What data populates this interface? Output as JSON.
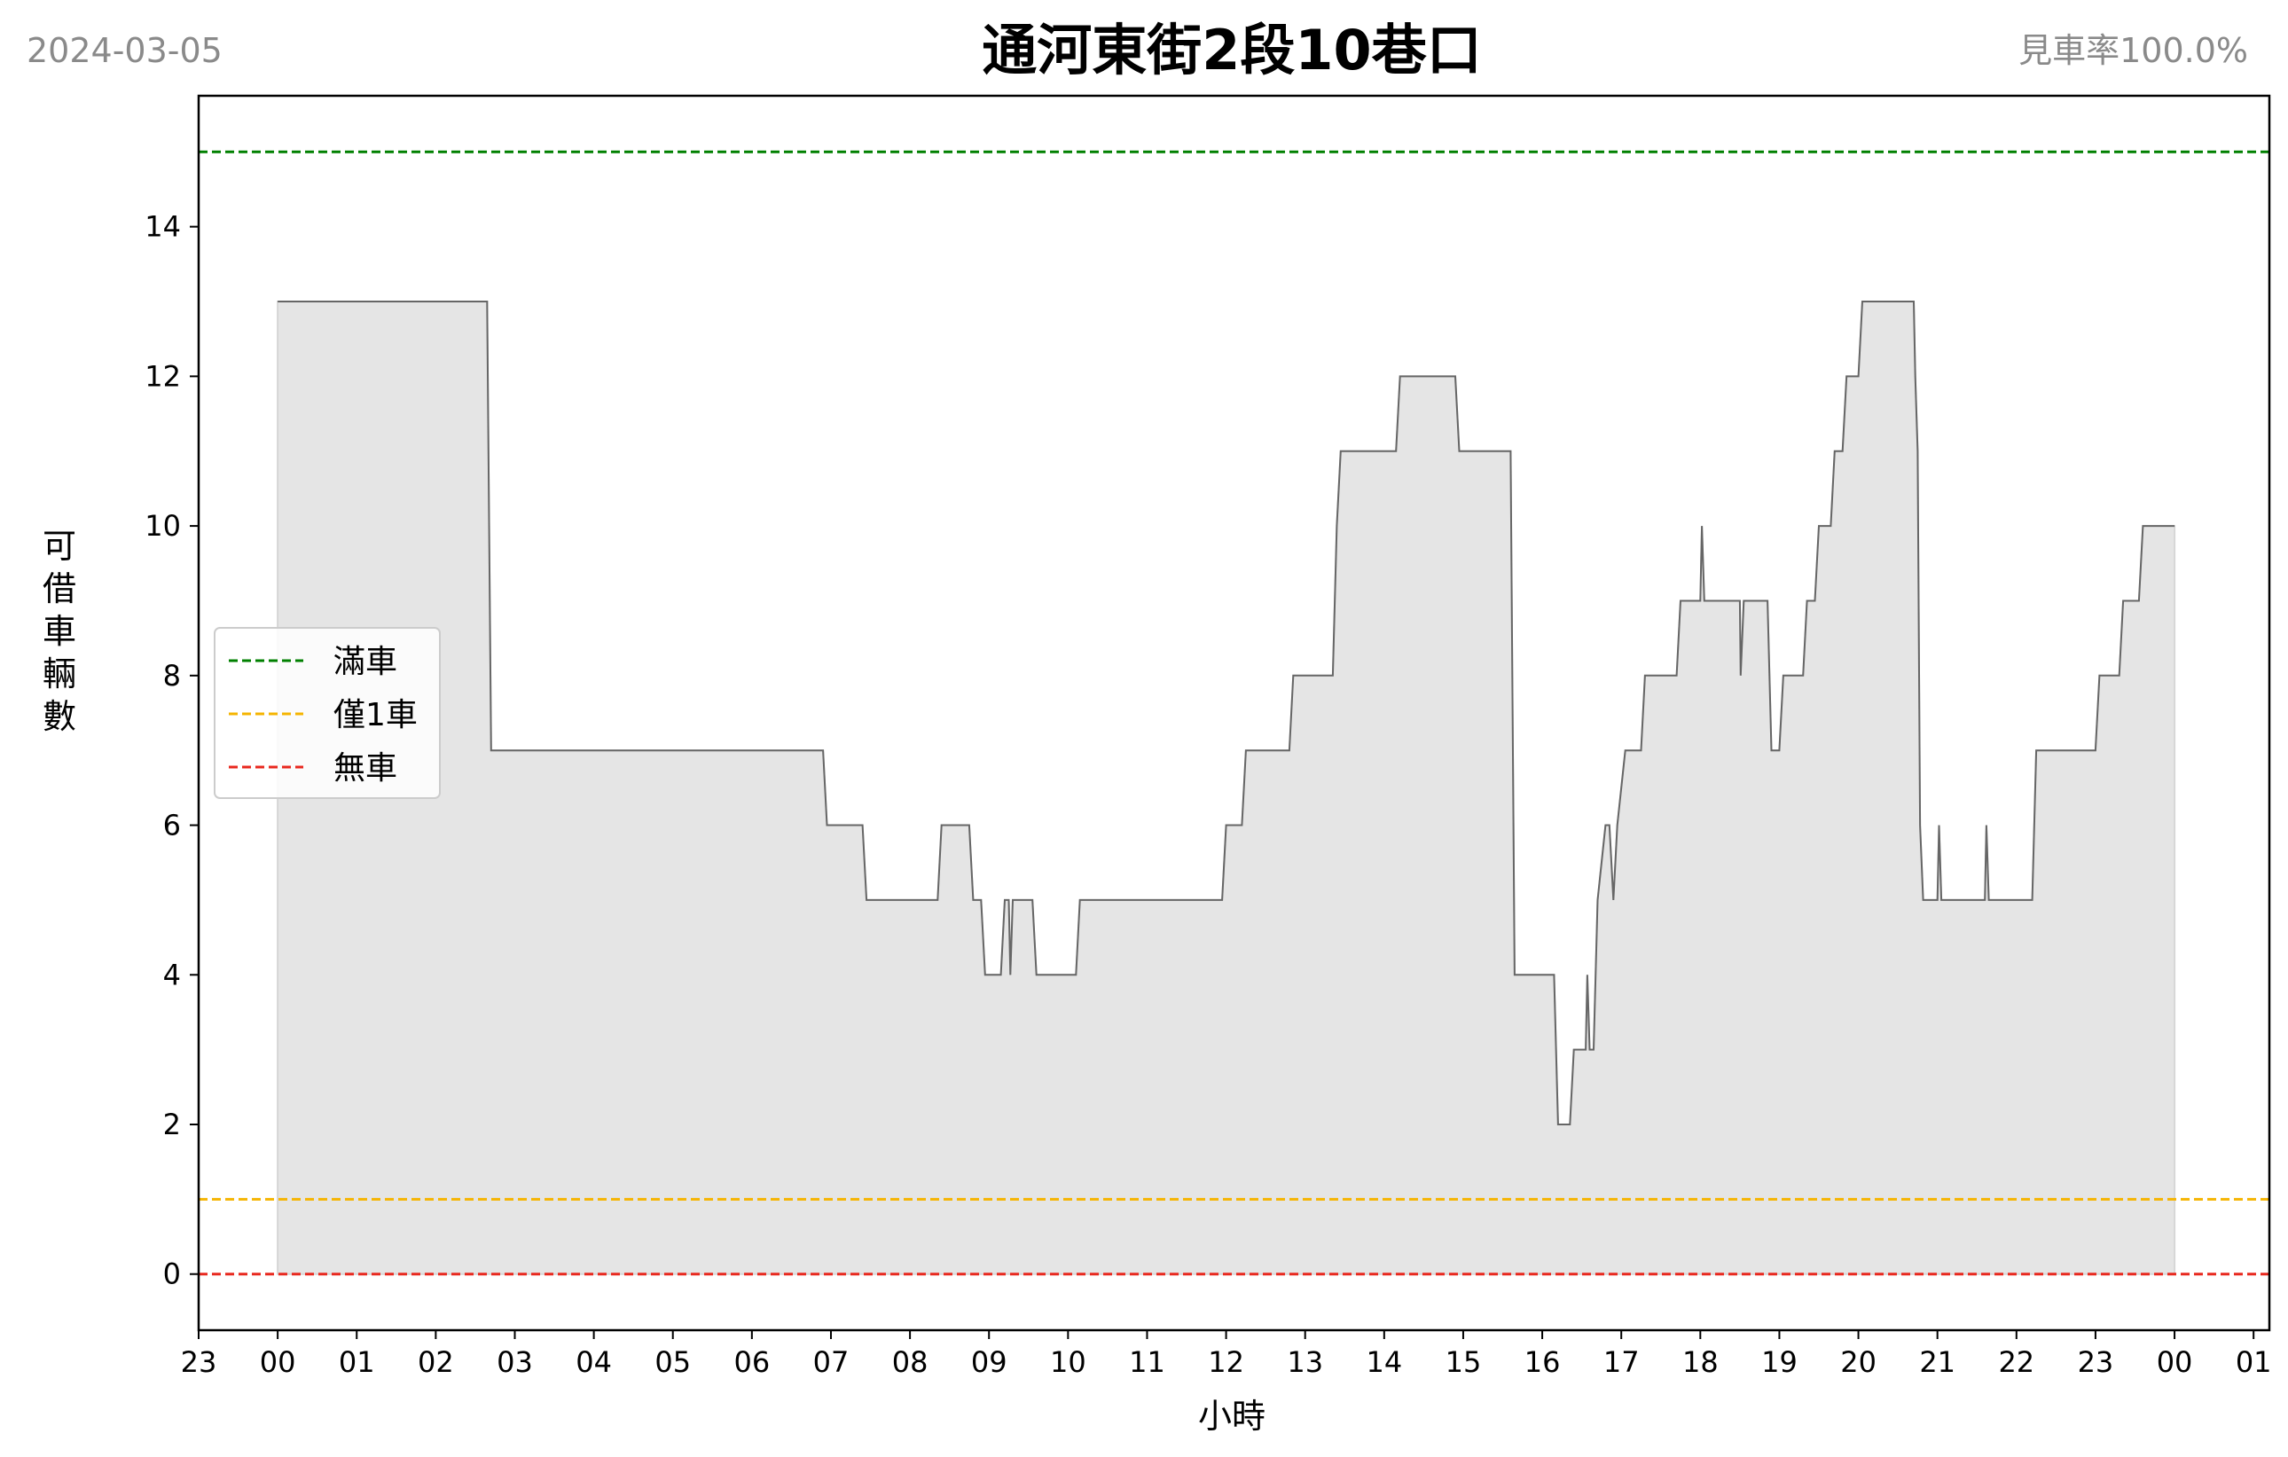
{
  "header": {
    "date": "2024-03-05",
    "title": "通河東街2段10巷口",
    "availability": "見車率100.0%"
  },
  "chart_data": {
    "type": "line",
    "title": "通河東街2段10巷口",
    "xlabel": "小時",
    "ylabel": "可借車輛數",
    "xlim": [
      -1.0,
      25.2
    ],
    "ylim": [
      -0.75,
      15.75
    ],
    "x_ticks": [
      -1,
      0,
      1,
      2,
      3,
      4,
      5,
      6,
      7,
      8,
      9,
      10,
      11,
      12,
      13,
      14,
      15,
      16,
      17,
      18,
      19,
      20,
      21,
      22,
      23,
      24,
      25
    ],
    "x_tick_labels": [
      "23",
      "00",
      "01",
      "02",
      "03",
      "04",
      "05",
      "06",
      "07",
      "08",
      "09",
      "10",
      "11",
      "12",
      "13",
      "14",
      "15",
      "16",
      "17",
      "18",
      "19",
      "20",
      "21",
      "22",
      "23",
      "00",
      "01"
    ],
    "y_ticks": [
      0,
      2,
      4,
      6,
      8,
      10,
      12,
      14
    ],
    "y_tick_labels": [
      "0",
      "2",
      "4",
      "6",
      "8",
      "10",
      "12",
      "14"
    ],
    "grid": false,
    "legend_position": "center-left",
    "reference_lines": [
      {
        "name": "滿車",
        "y": 15,
        "color": "#008000"
      },
      {
        "name": "僅1車",
        "y": 1,
        "color": "#f5b400"
      },
      {
        "name": "無車",
        "y": 0,
        "color": "#e8281e"
      }
    ],
    "series": [
      {
        "color": "#666666",
        "fill": "#e5e5e5",
        "x": [
          0.0,
          2.65,
          2.7,
          6.9,
          6.95,
          7.4,
          7.45,
          8.35,
          8.4,
          8.75,
          8.8,
          8.9,
          8.95,
          9.15,
          9.2,
          9.25,
          9.27,
          9.3,
          9.55,
          9.6,
          10.1,
          10.15,
          11.95,
          12.0,
          12.2,
          12.25,
          12.8,
          12.85,
          13.35,
          13.4,
          13.45,
          14.15,
          14.2,
          14.9,
          14.95,
          15.6,
          15.65,
          16.15,
          16.2,
          16.35,
          16.4,
          16.55,
          16.57,
          16.6,
          16.65,
          16.7,
          16.8,
          16.85,
          16.9,
          16.95,
          17.05,
          17.25,
          17.3,
          17.7,
          17.75,
          18.0,
          18.02,
          18.05,
          18.5,
          18.51,
          18.55,
          18.85,
          18.9,
          19.0,
          19.05,
          19.3,
          19.35,
          19.45,
          19.5,
          19.65,
          19.7,
          19.8,
          19.85,
          20.0,
          20.05,
          20.7,
          20.72,
          20.75,
          20.78,
          20.82,
          21.0,
          21.02,
          21.05,
          21.6,
          21.62,
          21.65,
          22.2,
          22.25,
          23.0,
          23.05,
          23.3,
          23.35,
          23.55,
          23.6,
          24.0
        ],
        "y": [
          13,
          13,
          7,
          7,
          6,
          6,
          5,
          5,
          6,
          6,
          5,
          5,
          4,
          4,
          5,
          5,
          4,
          5,
          5,
          4,
          4,
          5,
          5,
          6,
          6,
          7,
          7,
          8,
          8,
          10,
          11,
          11,
          12,
          12,
          11,
          11,
          4,
          4,
          2,
          2,
          3,
          3,
          4,
          3,
          3,
          5,
          6,
          6,
          5,
          6,
          7,
          7,
          8,
          8,
          9,
          9,
          10,
          9,
          9,
          8,
          9,
          9,
          7,
          7,
          8,
          8,
          9,
          9,
          10,
          10,
          11,
          11,
          12,
          12,
          13,
          13,
          12,
          11,
          6,
          5,
          5,
          6,
          5,
          5,
          6,
          5,
          5,
          7,
          7,
          8,
          8,
          9,
          9,
          10,
          10
        ]
      }
    ]
  }
}
